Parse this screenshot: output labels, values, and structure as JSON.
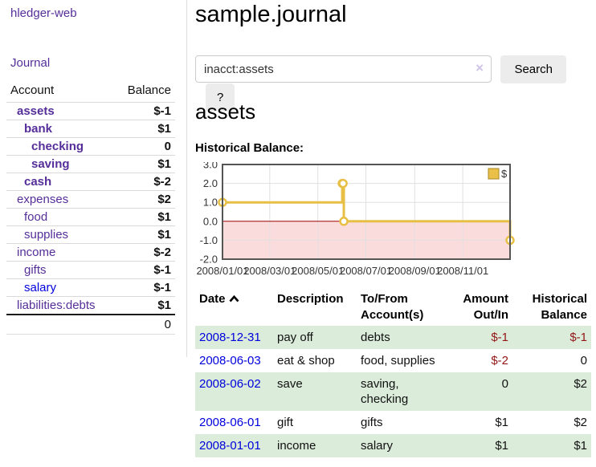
{
  "app": {
    "title": "hledger-web"
  },
  "sidebar": {
    "journal_link": "Journal",
    "accounts_table": {
      "header_account": "Account",
      "header_balance": "Balance",
      "rows": [
        {
          "account": "assets",
          "balance": "$-1",
          "indent": 0,
          "bold": true,
          "balance_class": "neg"
        },
        {
          "account": "bank",
          "balance": "$1",
          "indent": 1,
          "bold": true,
          "balance_class": ""
        },
        {
          "account": "checking",
          "balance": "0",
          "indent": 2,
          "bold": true,
          "balance_class": ""
        },
        {
          "account": "saving",
          "balance": "$1",
          "indent": 2,
          "bold": true,
          "balance_class": ""
        },
        {
          "account": "cash",
          "balance": "$-2",
          "indent": 1,
          "bold": true,
          "balance_class": "neg"
        },
        {
          "account": "expenses",
          "balance": "$2",
          "indent": 0,
          "bold": false,
          "balance_class": ""
        },
        {
          "account": "food",
          "balance": "$1",
          "indent": 1,
          "bold": false,
          "balance_class": ""
        },
        {
          "account": "supplies",
          "balance": "$1",
          "indent": 1,
          "bold": false,
          "balance_class": ""
        },
        {
          "account": "income",
          "balance": "$-2",
          "indent": 0,
          "bold": false,
          "balance_class": "negm"
        },
        {
          "account": "gifts",
          "balance": "$-1",
          "indent": 1,
          "bold": false,
          "balance_class": "negm"
        },
        {
          "account": "salary",
          "balance": "$-1",
          "indent": 1,
          "bold": false,
          "balance_class": "negm",
          "link": "blue"
        },
        {
          "account": "liabilities:debts",
          "balance": "$1",
          "indent": 0,
          "bold": false,
          "balance_class": ""
        }
      ],
      "total": "0"
    }
  },
  "header": {
    "title": "sample.journal"
  },
  "search": {
    "value": "inacct:assets",
    "clear_icon": "×",
    "button_label": "Search",
    "help_label": "?"
  },
  "main": {
    "account_heading": "assets",
    "chart_label": "Historical Balance:"
  },
  "chart_data": {
    "type": "line",
    "step": true,
    "title": "Historical Balance",
    "series": [
      {
        "name": "$",
        "x": [
          "2008-01-01",
          "2008-06-01",
          "2008-06-02",
          "2008-06-03",
          "2008-12-31"
        ],
        "x_days": [
          0,
          152,
          153,
          154,
          365
        ],
        "values": [
          1,
          2,
          2,
          0,
          -1
        ]
      }
    ],
    "ylim": [
      -2.0,
      3.0
    ],
    "yticks": [
      3.0,
      2.0,
      1.0,
      0.0,
      -1.0,
      -2.0
    ],
    "xticks": [
      "2008/01/01",
      "2008/03/01",
      "2008/05/01",
      "2008/07/01",
      "2008/09/01",
      "2008/11/01"
    ],
    "xtick_days": [
      0,
      60,
      121,
      182,
      244,
      305
    ],
    "x_days_range": [
      0,
      365
    ],
    "legend_position": "top-right",
    "grid": true,
    "line_color": "#e8bf45",
    "marker_fill": "#ffffff",
    "negative_region_fill": "#fbdcdc",
    "zero_line_color": "#a00000",
    "border_color": "#555555",
    "grid_color": "#e0e0e0",
    "legend_swatch_fill": "#eac049",
    "legend_swatch_border": "#a8882a"
  },
  "register": {
    "columns": [
      {
        "label": "Date"
      },
      {
        "label": "Description"
      },
      {
        "label": "To/From Account(s)"
      },
      {
        "label": "Amount Out/In"
      },
      {
        "label": "Historical Balance"
      }
    ],
    "rows": [
      {
        "date": "2008-12-31",
        "description": "pay off",
        "accounts": "debts",
        "amount": "$-1",
        "balance": "$-1",
        "amount_class": "neg",
        "balance_class": "neg"
      },
      {
        "date": "2008-06-03",
        "description": "eat & shop",
        "accounts": "food, supplies",
        "amount": "$-2",
        "balance": "0",
        "amount_class": "neg",
        "balance_class": ""
      },
      {
        "date": "2008-06-02",
        "description": "save",
        "accounts": "saving, checking",
        "amount": "0",
        "balance": "$2",
        "amount_class": "",
        "balance_class": ""
      },
      {
        "date": "2008-06-01",
        "description": "gift",
        "accounts": "gifts",
        "amount": "$1",
        "balance": "$2",
        "amount_class": "",
        "balance_class": ""
      },
      {
        "date": "2008-01-01",
        "description": "income",
        "accounts": "salary",
        "amount": "$1",
        "balance": "$1",
        "amount_class": "",
        "balance_class": ""
      }
    ]
  },
  "colors": {
    "link_purple": "#552e99",
    "link_blue": "#0000dd",
    "negative_strong": "#941616",
    "negative_muted": "#bc7878",
    "row_stripe_green": "#dbecdb"
  }
}
